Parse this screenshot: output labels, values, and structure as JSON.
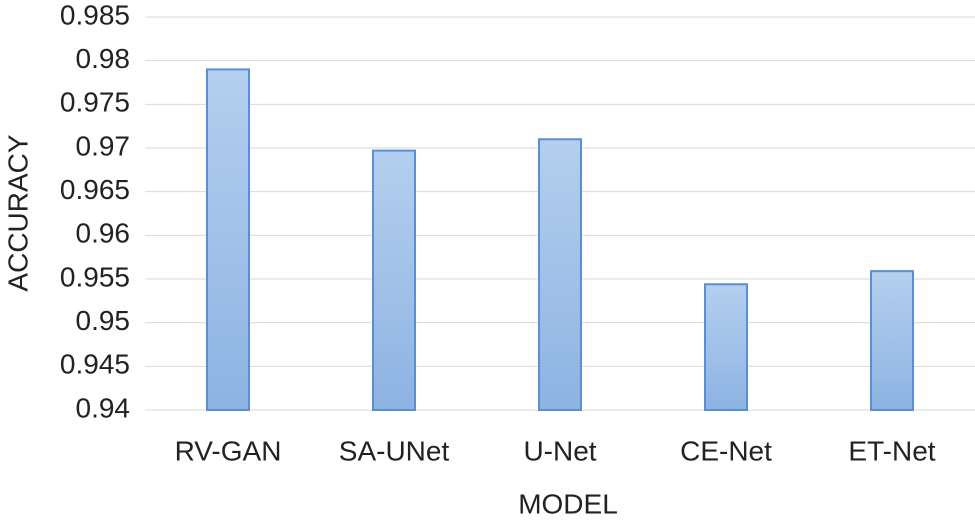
{
  "chart_data": {
    "type": "bar",
    "x_label": "MODEL",
    "y_label": "ACCURACY",
    "categories": [
      "RV-GAN",
      "SA-UNet",
      "U-Net",
      "CE-Net",
      "ET-Net"
    ],
    "values": [
      0.979,
      0.9697,
      0.971,
      0.9544,
      0.9559
    ],
    "color": "#9dbfe8",
    "edge_color": "#5b8fd4",
    "ylim": [
      0.94,
      0.985
    ],
    "yticks": [
      0.94,
      0.945,
      0.95,
      0.955,
      0.96,
      0.965,
      0.97,
      0.975,
      0.98,
      0.985
    ],
    "grid": true
  }
}
